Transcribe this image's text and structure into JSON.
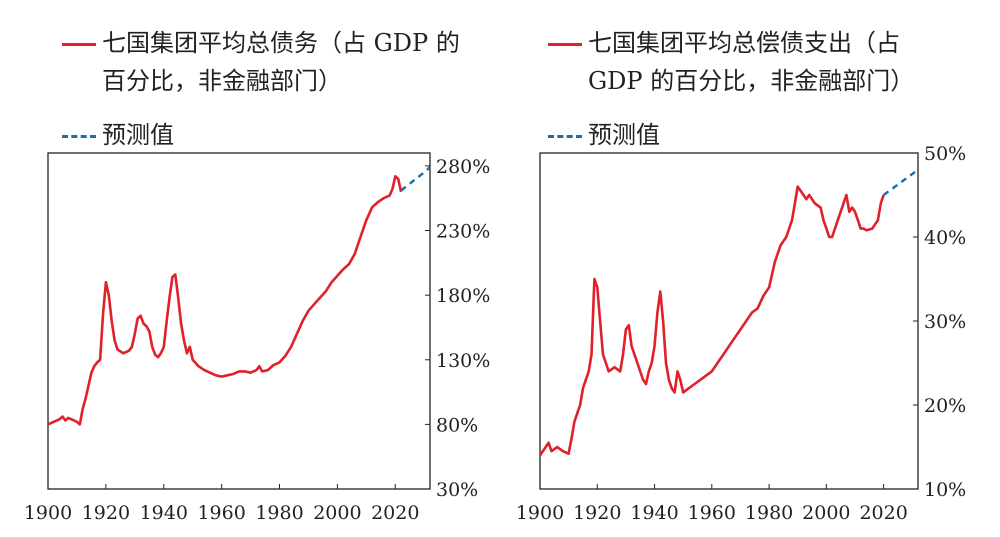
{
  "legend_left": {
    "series": "七国集团平均总债务（占 GDP 的百分比，非金融部门）",
    "forecast": "预测值"
  },
  "legend_right": {
    "series": "七国集团平均总偿债支出（占 GDP 的百分比，非金融部门）",
    "forecast": "预测值"
  },
  "colors": {
    "series": "#e0202a",
    "forecast": "#1a6fa8"
  },
  "chart_data": [
    {
      "type": "line",
      "title": "",
      "series_name": "七国集团平均总债务（占 GDP 的百分比，非金融部门）",
      "forecast_name": "预测值",
      "xlim": [
        1900,
        2032
      ],
      "ylim": [
        30,
        290
      ],
      "x_ticks": [
        1900,
        1920,
        1940,
        1960,
        1980,
        2000,
        2020
      ],
      "y_ticks": [
        30,
        80,
        130,
        180,
        230,
        280
      ],
      "y_tick_labels": [
        "30%",
        "80%",
        "130%",
        "180%",
        "230%",
        "280%"
      ],
      "y_axis_side": "right",
      "series": [
        {
          "x": 1900,
          "y": 80
        },
        {
          "x": 1902,
          "y": 82
        },
        {
          "x": 1904,
          "y": 84
        },
        {
          "x": 1905,
          "y": 86
        },
        {
          "x": 1906,
          "y": 83
        },
        {
          "x": 1907,
          "y": 85
        },
        {
          "x": 1908,
          "y": 84
        },
        {
          "x": 1910,
          "y": 82
        },
        {
          "x": 1911,
          "y": 80
        },
        {
          "x": 1912,
          "y": 92
        },
        {
          "x": 1913,
          "y": 100
        },
        {
          "x": 1914,
          "y": 110
        },
        {
          "x": 1915,
          "y": 120
        },
        {
          "x": 1916,
          "y": 125
        },
        {
          "x": 1917,
          "y": 128
        },
        {
          "x": 1918,
          "y": 130
        },
        {
          "x": 1919,
          "y": 165
        },
        {
          "x": 1920,
          "y": 190
        },
        {
          "x": 1921,
          "y": 180
        },
        {
          "x": 1922,
          "y": 160
        },
        {
          "x": 1923,
          "y": 145
        },
        {
          "x": 1924,
          "y": 138
        },
        {
          "x": 1926,
          "y": 135
        },
        {
          "x": 1928,
          "y": 137
        },
        {
          "x": 1929,
          "y": 140
        },
        {
          "x": 1930,
          "y": 150
        },
        {
          "x": 1931,
          "y": 162
        },
        {
          "x": 1932,
          "y": 164
        },
        {
          "x": 1933,
          "y": 158
        },
        {
          "x": 1934,
          "y": 156
        },
        {
          "x": 1935,
          "y": 152
        },
        {
          "x": 1936,
          "y": 140
        },
        {
          "x": 1937,
          "y": 134
        },
        {
          "x": 1938,
          "y": 132
        },
        {
          "x": 1939,
          "y": 135
        },
        {
          "x": 1940,
          "y": 140
        },
        {
          "x": 1941,
          "y": 160
        },
        {
          "x": 1942,
          "y": 178
        },
        {
          "x": 1943,
          "y": 194
        },
        {
          "x": 1944,
          "y": 196
        },
        {
          "x": 1945,
          "y": 178
        },
        {
          "x": 1946,
          "y": 158
        },
        {
          "x": 1947,
          "y": 145
        },
        {
          "x": 1948,
          "y": 135
        },
        {
          "x": 1949,
          "y": 140
        },
        {
          "x": 1950,
          "y": 130
        },
        {
          "x": 1952,
          "y": 125
        },
        {
          "x": 1954,
          "y": 122
        },
        {
          "x": 1956,
          "y": 120
        },
        {
          "x": 1958,
          "y": 118
        },
        {
          "x": 1960,
          "y": 117
        },
        {
          "x": 1962,
          "y": 118
        },
        {
          "x": 1964,
          "y": 119
        },
        {
          "x": 1966,
          "y": 121
        },
        {
          "x": 1968,
          "y": 121
        },
        {
          "x": 1970,
          "y": 120
        },
        {
          "x": 1972,
          "y": 122
        },
        {
          "x": 1973,
          "y": 125
        },
        {
          "x": 1974,
          "y": 121
        },
        {
          "x": 1976,
          "y": 122
        },
        {
          "x": 1978,
          "y": 126
        },
        {
          "x": 1980,
          "y": 128
        },
        {
          "x": 1982,
          "y": 133
        },
        {
          "x": 1984,
          "y": 140
        },
        {
          "x": 1986,
          "y": 150
        },
        {
          "x": 1988,
          "y": 160
        },
        {
          "x": 1990,
          "y": 168
        },
        {
          "x": 1992,
          "y": 173
        },
        {
          "x": 1994,
          "y": 178
        },
        {
          "x": 1996,
          "y": 183
        },
        {
          "x": 1998,
          "y": 190
        },
        {
          "x": 2000,
          "y": 195
        },
        {
          "x": 2002,
          "y": 200
        },
        {
          "x": 2004,
          "y": 204
        },
        {
          "x": 2006,
          "y": 212
        },
        {
          "x": 2008,
          "y": 225
        },
        {
          "x": 2010,
          "y": 238
        },
        {
          "x": 2012,
          "y": 248
        },
        {
          "x": 2014,
          "y": 252
        },
        {
          "x": 2016,
          "y": 255
        },
        {
          "x": 2018,
          "y": 257
        },
        {
          "x": 2019,
          "y": 262
        },
        {
          "x": 2020,
          "y": 272
        },
        {
          "x": 2021,
          "y": 270
        },
        {
          "x": 2022,
          "y": 260
        }
      ],
      "forecast": [
        {
          "x": 2022,
          "y": 261
        },
        {
          "x": 2026,
          "y": 268
        },
        {
          "x": 2030,
          "y": 275
        },
        {
          "x": 2032,
          "y": 279
        }
      ]
    },
    {
      "type": "line",
      "title": "",
      "series_name": "七国集团平均总偿债支出（占 GDP 的百分比，非金融部门）",
      "forecast_name": "预测值",
      "xlim": [
        1900,
        2032
      ],
      "ylim": [
        10,
        50
      ],
      "x_ticks": [
        1900,
        1920,
        1940,
        1960,
        1980,
        2000,
        2020
      ],
      "y_ticks": [
        10,
        20,
        30,
        40,
        50
      ],
      "y_tick_labels": [
        "10%",
        "20%",
        "30%",
        "40%",
        "50%"
      ],
      "y_axis_side": "right",
      "series": [
        {
          "x": 1900,
          "y": 14
        },
        {
          "x": 1902,
          "y": 15
        },
        {
          "x": 1903,
          "y": 15.5
        },
        {
          "x": 1904,
          "y": 14.5
        },
        {
          "x": 1906,
          "y": 15
        },
        {
          "x": 1908,
          "y": 14.5
        },
        {
          "x": 1910,
          "y": 14.2
        },
        {
          "x": 1911,
          "y": 16
        },
        {
          "x": 1912,
          "y": 18
        },
        {
          "x": 1913,
          "y": 19
        },
        {
          "x": 1914,
          "y": 20
        },
        {
          "x": 1915,
          "y": 22
        },
        {
          "x": 1916,
          "y": 23
        },
        {
          "x": 1917,
          "y": 24
        },
        {
          "x": 1918,
          "y": 26
        },
        {
          "x": 1919,
          "y": 35
        },
        {
          "x": 1920,
          "y": 34
        },
        {
          "x": 1921,
          "y": 30
        },
        {
          "x": 1922,
          "y": 26
        },
        {
          "x": 1923,
          "y": 25
        },
        {
          "x": 1924,
          "y": 24
        },
        {
          "x": 1926,
          "y": 24.5
        },
        {
          "x": 1928,
          "y": 24
        },
        {
          "x": 1929,
          "y": 26
        },
        {
          "x": 1930,
          "y": 29
        },
        {
          "x": 1931,
          "y": 29.5
        },
        {
          "x": 1932,
          "y": 27
        },
        {
          "x": 1933,
          "y": 26
        },
        {
          "x": 1934,
          "y": 25
        },
        {
          "x": 1935,
          "y": 24
        },
        {
          "x": 1936,
          "y": 23
        },
        {
          "x": 1937,
          "y": 22.5
        },
        {
          "x": 1938,
          "y": 24
        },
        {
          "x": 1939,
          "y": 25
        },
        {
          "x": 1940,
          "y": 27
        },
        {
          "x": 1941,
          "y": 31
        },
        {
          "x": 1942,
          "y": 33.5
        },
        {
          "x": 1943,
          "y": 30
        },
        {
          "x": 1944,
          "y": 25
        },
        {
          "x": 1945,
          "y": 23
        },
        {
          "x": 1946,
          "y": 22
        },
        {
          "x": 1947,
          "y": 21.5
        },
        {
          "x": 1948,
          "y": 24
        },
        {
          "x": 1949,
          "y": 23
        },
        {
          "x": 1950,
          "y": 21.5
        },
        {
          "x": 1952,
          "y": 22
        },
        {
          "x": 1954,
          "y": 22.5
        },
        {
          "x": 1956,
          "y": 23
        },
        {
          "x": 1958,
          "y": 23.5
        },
        {
          "x": 1960,
          "y": 24
        },
        {
          "x": 1962,
          "y": 25
        },
        {
          "x": 1964,
          "y": 26
        },
        {
          "x": 1966,
          "y": 27
        },
        {
          "x": 1968,
          "y": 28
        },
        {
          "x": 1970,
          "y": 29
        },
        {
          "x": 1972,
          "y": 30
        },
        {
          "x": 1974,
          "y": 31
        },
        {
          "x": 1976,
          "y": 31.5
        },
        {
          "x": 1978,
          "y": 33
        },
        {
          "x": 1980,
          "y": 34
        },
        {
          "x": 1982,
          "y": 37
        },
        {
          "x": 1984,
          "y": 39
        },
        {
          "x": 1986,
          "y": 40
        },
        {
          "x": 1987,
          "y": 41
        },
        {
          "x": 1988,
          "y": 42
        },
        {
          "x": 1989,
          "y": 44
        },
        {
          "x": 1990,
          "y": 46
        },
        {
          "x": 1991,
          "y": 45.5
        },
        {
          "x": 1992,
          "y": 45
        },
        {
          "x": 1993,
          "y": 44.5
        },
        {
          "x": 1994,
          "y": 45
        },
        {
          "x": 1996,
          "y": 44
        },
        {
          "x": 1998,
          "y": 43.5
        },
        {
          "x": 1999,
          "y": 42
        },
        {
          "x": 2000,
          "y": 41
        },
        {
          "x": 2001,
          "y": 40
        },
        {
          "x": 2002,
          "y": 40
        },
        {
          "x": 2004,
          "y": 42
        },
        {
          "x": 2006,
          "y": 44
        },
        {
          "x": 2007,
          "y": 45
        },
        {
          "x": 2008,
          "y": 43
        },
        {
          "x": 2009,
          "y": 43.5
        },
        {
          "x": 2010,
          "y": 43
        },
        {
          "x": 2011,
          "y": 42
        },
        {
          "x": 2012,
          "y": 41
        },
        {
          "x": 2013,
          "y": 41
        },
        {
          "x": 2014,
          "y": 40.8
        },
        {
          "x": 2016,
          "y": 41
        },
        {
          "x": 2018,
          "y": 42
        },
        {
          "x": 2019,
          "y": 44
        },
        {
          "x": 2020,
          "y": 45
        }
      ],
      "forecast": [
        {
          "x": 2020,
          "y": 45
        },
        {
          "x": 2024,
          "y": 46
        },
        {
          "x": 2028,
          "y": 47
        },
        {
          "x": 2032,
          "y": 48
        }
      ]
    }
  ]
}
